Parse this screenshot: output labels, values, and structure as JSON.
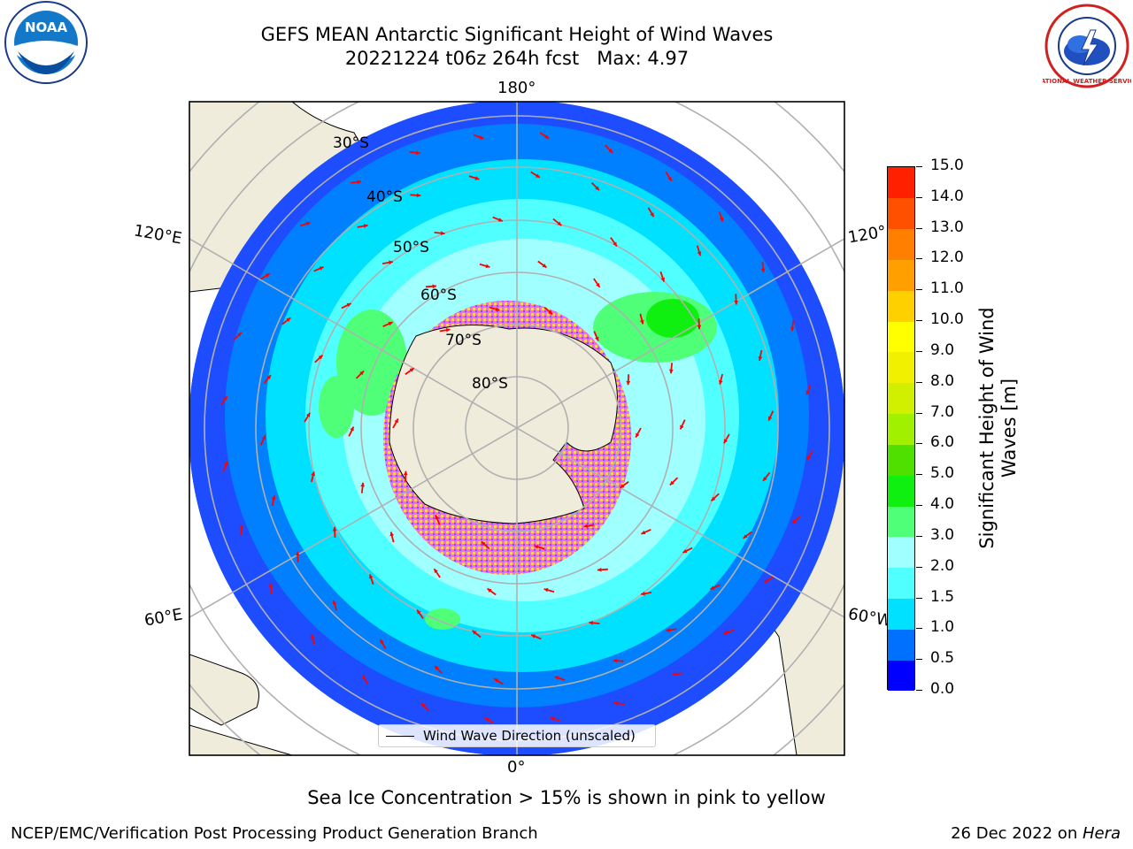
{
  "title": {
    "line1": "GEFS MEAN Antarctic Significant Height of Wind Waves",
    "line2": "20221224 t06z 264h fcst   Max: 4.97"
  },
  "logos": {
    "left": {
      "name": "noaa-logo",
      "text": "NOAA"
    },
    "right": {
      "name": "national-weather-service-logo",
      "text": "NATIONAL WEATHER SERVICE"
    }
  },
  "map": {
    "projection": "south-polar-stereographic",
    "longitude_labels": {
      "top": "180°",
      "bottom": "0°",
      "upper_left": "120°E",
      "upper_right": "120°",
      "lower_left": "60°E",
      "lower_right": "60°W"
    },
    "latitude_labels": [
      "30°S",
      "40°S",
      "50°S",
      "60°S",
      "70°S",
      "80°S"
    ],
    "legend": "Wind Wave Direction (unscaled)",
    "colors": {
      "land": "#efecdc",
      "ice_edge": "#ff40ff",
      "arrows": "#ff0000",
      "grid": "#b0b0b0"
    }
  },
  "colorbar": {
    "label": "Significant Height of Wind Waves [m]",
    "label_line1": "Significant Height of Wind",
    "label_line2": "Waves [m]",
    "ticks": [
      "0.0",
      "0.5",
      "1.0",
      "1.5",
      "2.0",
      "3.0",
      "4.0",
      "5.0",
      "6.0",
      "7.0",
      "8.0",
      "9.0",
      "10.0",
      "11.0",
      "12.0",
      "13.0",
      "14.0",
      "15.0"
    ],
    "colors": [
      "#0000ff",
      "#0070ff",
      "#00e0ff",
      "#50ffff",
      "#a0ffff",
      "#50ff78",
      "#10f010",
      "#50e000",
      "#a0f000",
      "#d0f000",
      "#f0f000",
      "#ffff00",
      "#ffd000",
      "#ffa000",
      "#ff8000",
      "#ff5000",
      "#ff2000"
    ]
  },
  "note": "Sea Ice Concentration > 15% is shown in pink to yellow",
  "footer": {
    "left": "NCEP/EMC/Verification Post Processing Product Generation Branch",
    "right_prefix": "26 Dec 2022 on ",
    "right_host": "Hera"
  }
}
